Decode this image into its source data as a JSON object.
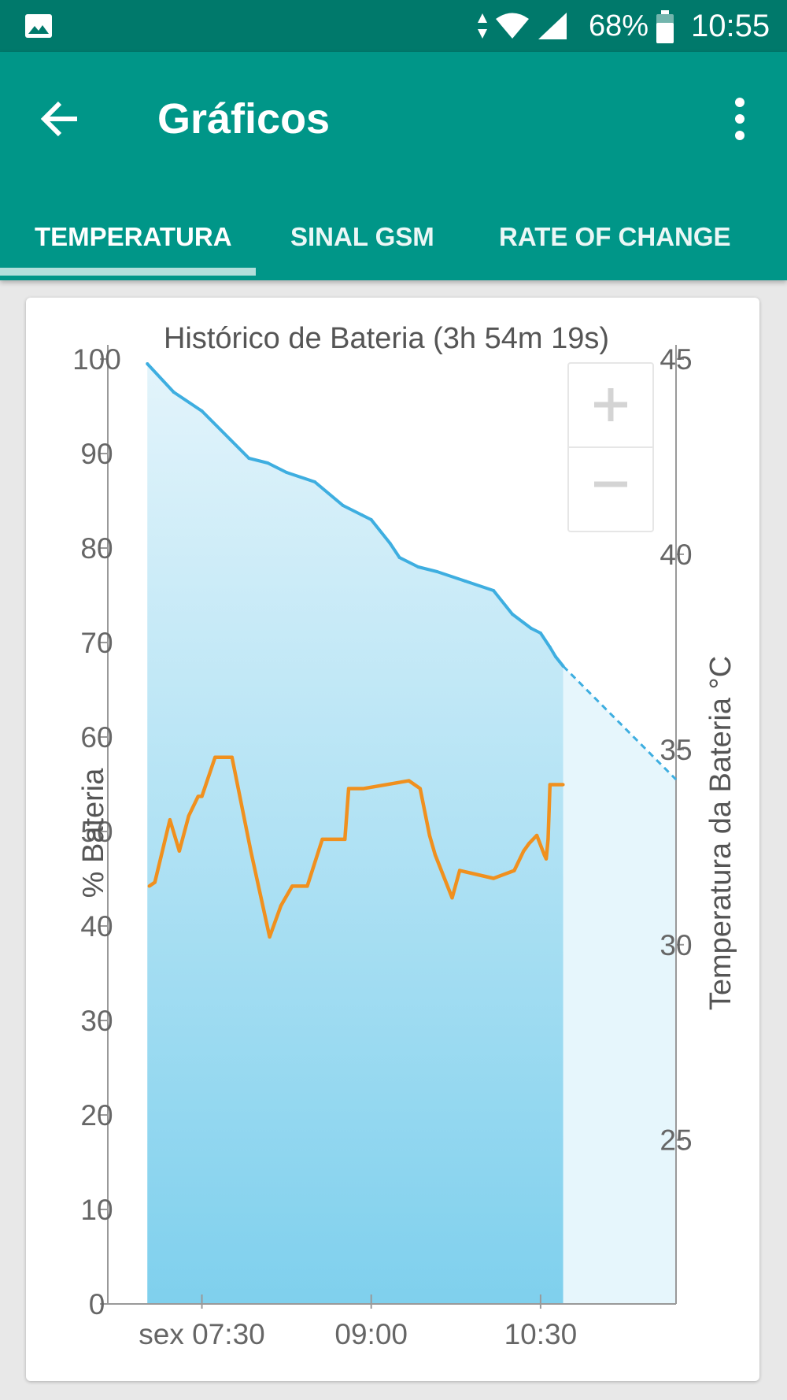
{
  "status_bar": {
    "battery_percent": "68%",
    "time": "10:55",
    "icons": [
      "image-icon",
      "data-arrows-icon",
      "wifi-icon",
      "cell-signal-icon",
      "battery-icon"
    ]
  },
  "app_bar": {
    "title": "Gráficos",
    "back_icon": "arrow-left-icon",
    "more_icon": "more-vertical-icon"
  },
  "tabs": [
    {
      "label": "TEMPERATURA",
      "selected": true
    },
    {
      "label": "SINAL GSM",
      "selected": false
    },
    {
      "label": "RATE OF CHANGE",
      "selected": false
    }
  ],
  "zoom_controls": {
    "zoom_in": "+",
    "zoom_out": "−"
  },
  "colors": {
    "status_bar": "#00796b",
    "app_bar": "#009688",
    "tab_indicator": "#b2dfdb",
    "battery_line": "#3eaee0",
    "temperature_line": "#f0901e"
  },
  "chart_data": {
    "type": "line",
    "title": "Histórico de Bateria (3h 54m 19s)",
    "ylabel": "% Bateria",
    "y2label": "Temperatura da Bateria °C",
    "x_ticks": [
      "sex 07:30",
      "09:00",
      "10:30"
    ],
    "y_ticks": [
      "0",
      "10",
      "20",
      "30",
      "40",
      "50",
      "60",
      "70",
      "80",
      "90",
      "100"
    ],
    "y2_ticks": [
      "25",
      "30",
      "35",
      "40",
      "45"
    ],
    "ylim": [
      0,
      100
    ],
    "y2lim": [
      20.8,
      45
    ],
    "series": [
      {
        "axis": "left",
        "x": [
          "07:01",
          "07:15",
          "07:30",
          "07:45",
          "07:55",
          "08:05",
          "08:15",
          "08:30",
          "08:45",
          "08:55",
          "09:00",
          "09:10",
          "09:15",
          "09:25",
          "09:35",
          "09:50",
          "10:05",
          "10:15",
          "10:25",
          "10:30",
          "10:35",
          "10:38",
          "10:40",
          "10:42"
        ],
        "values": [
          99.5,
          96.5,
          94.5,
          91.5,
          89.5,
          89,
          88,
          87,
          84.5,
          83.5,
          83,
          80.5,
          79,
          78,
          77.5,
          76.5,
          75.5,
          73,
          71.5,
          71,
          69.5,
          68.5,
          68,
          67.5
        ]
      },
      {
        "axis": "left",
        "projection": true,
        "x": [
          "10:42",
          "11:42"
        ],
        "values": [
          67.5,
          55.5
        ]
      },
      {
        "axis": "right",
        "x": [
          "07:02",
          "07:05",
          "07:13",
          "07:18",
          "07:23",
          "07:28",
          "07:30",
          "07:37",
          "07:46",
          "07:56",
          "08:06",
          "08:12",
          "08:18",
          "08:26",
          "08:28",
          "08:34",
          "08:36",
          "08:46",
          "08:48",
          "08:56",
          "09:20",
          "09:26",
          "09:31",
          "09:34",
          "09:43",
          "09:47",
          "10:05",
          "10:16",
          "10:21",
          "10:24",
          "10:28",
          "10:32",
          "10:33",
          "10:34",
          "10:35",
          "10:37",
          "10:40",
          "10:42"
        ],
        "values": [
          31.5,
          31.6,
          33.2,
          32.4,
          33.3,
          33.8,
          33.8,
          34.8,
          34.8,
          32.4,
          30.2,
          31,
          31.5,
          31.5,
          31.8,
          32.7,
          32.7,
          32.7,
          34,
          34,
          34.2,
          34,
          32.8,
          32.3,
          31.2,
          31.9,
          31.7,
          31.9,
          32.4,
          32.6,
          32.8,
          32.3,
          32.2,
          32.7,
          34.1,
          34.1,
          34.1,
          34.1
        ]
      }
    ],
    "grid": false,
    "legend": "none"
  }
}
